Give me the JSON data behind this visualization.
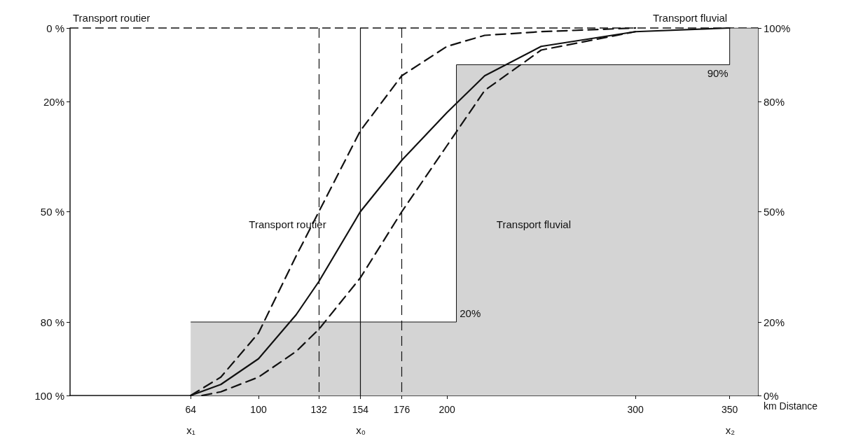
{
  "chart_data": {
    "type": "line",
    "xlabel": "km Distance",
    "xlim": [
      0,
      365
    ],
    "xticks": [
      64,
      100,
      132,
      154,
      176,
      200,
      300,
      350
    ],
    "ylim": [
      100,
      0
    ],
    "yticks": [
      {
        "value": 0,
        "label": "0 %"
      },
      {
        "value": 20,
        "label": "20%"
      },
      {
        "value": 50,
        "label": "50 %"
      },
      {
        "value": 80,
        "label": "80 %"
      },
      {
        "value": 100,
        "label": "100 %"
      }
    ],
    "y2lim": [
      0,
      100
    ],
    "y2ticks": [
      {
        "value": 0,
        "label": "0%"
      },
      {
        "value": 20,
        "label": "20%"
      },
      {
        "value": 50,
        "label": "50%"
      },
      {
        "value": 80,
        "label": "80%"
      },
      {
        "value": 100,
        "label": "100%"
      }
    ],
    "series": [
      {
        "type": "area",
        "axis": "y2",
        "color": "#d4d4d4",
        "x": [
          64,
          205,
          205,
          350,
          350,
          365
        ],
        "values": [
          20,
          20,
          90,
          90,
          100,
          100
        ]
      },
      {
        "axis": "y2",
        "color": "#111111",
        "line_style": "dashed",
        "x": [
          64,
          80,
          100,
          120,
          132,
          154,
          176,
          200,
          220,
          250,
          300
        ],
        "values": [
          0,
          5,
          17,
          38,
          50,
          72,
          87,
          95,
          98,
          99,
          100
        ]
      },
      {
        "axis": "y2",
        "color": "#111111",
        "line_style": "solid",
        "x": [
          64,
          80,
          100,
          120,
          132,
          154,
          176,
          200,
          220,
          250,
          300,
          350
        ],
        "values": [
          0,
          3,
          10,
          22,
          31,
          50,
          64,
          77,
          87,
          95,
          99,
          100
        ]
      },
      {
        "axis": "y2",
        "color": "#111111",
        "line_style": "dashed",
        "x": [
          70,
          80,
          100,
          120,
          132,
          154,
          176,
          200,
          220,
          250,
          300
        ],
        "values": [
          0,
          1,
          5,
          12,
          18,
          32,
          50,
          68,
          83,
          94,
          99
        ]
      }
    ],
    "ref_lines": [
      {
        "axis": "x",
        "value": 132,
        "line_style": "dashed"
      },
      {
        "axis": "x",
        "value": 154,
        "line_style": "solid"
      },
      {
        "axis": "x",
        "value": 176,
        "line_style": "dashed"
      }
    ],
    "annotations": [
      "Transport routier",
      "Transport fluvial",
      "Transport routier",
      "Transport fluvial",
      "20%",
      "90%",
      "x₁",
      "x₀",
      "x₂"
    ],
    "marker": "none",
    "grid": false
  }
}
